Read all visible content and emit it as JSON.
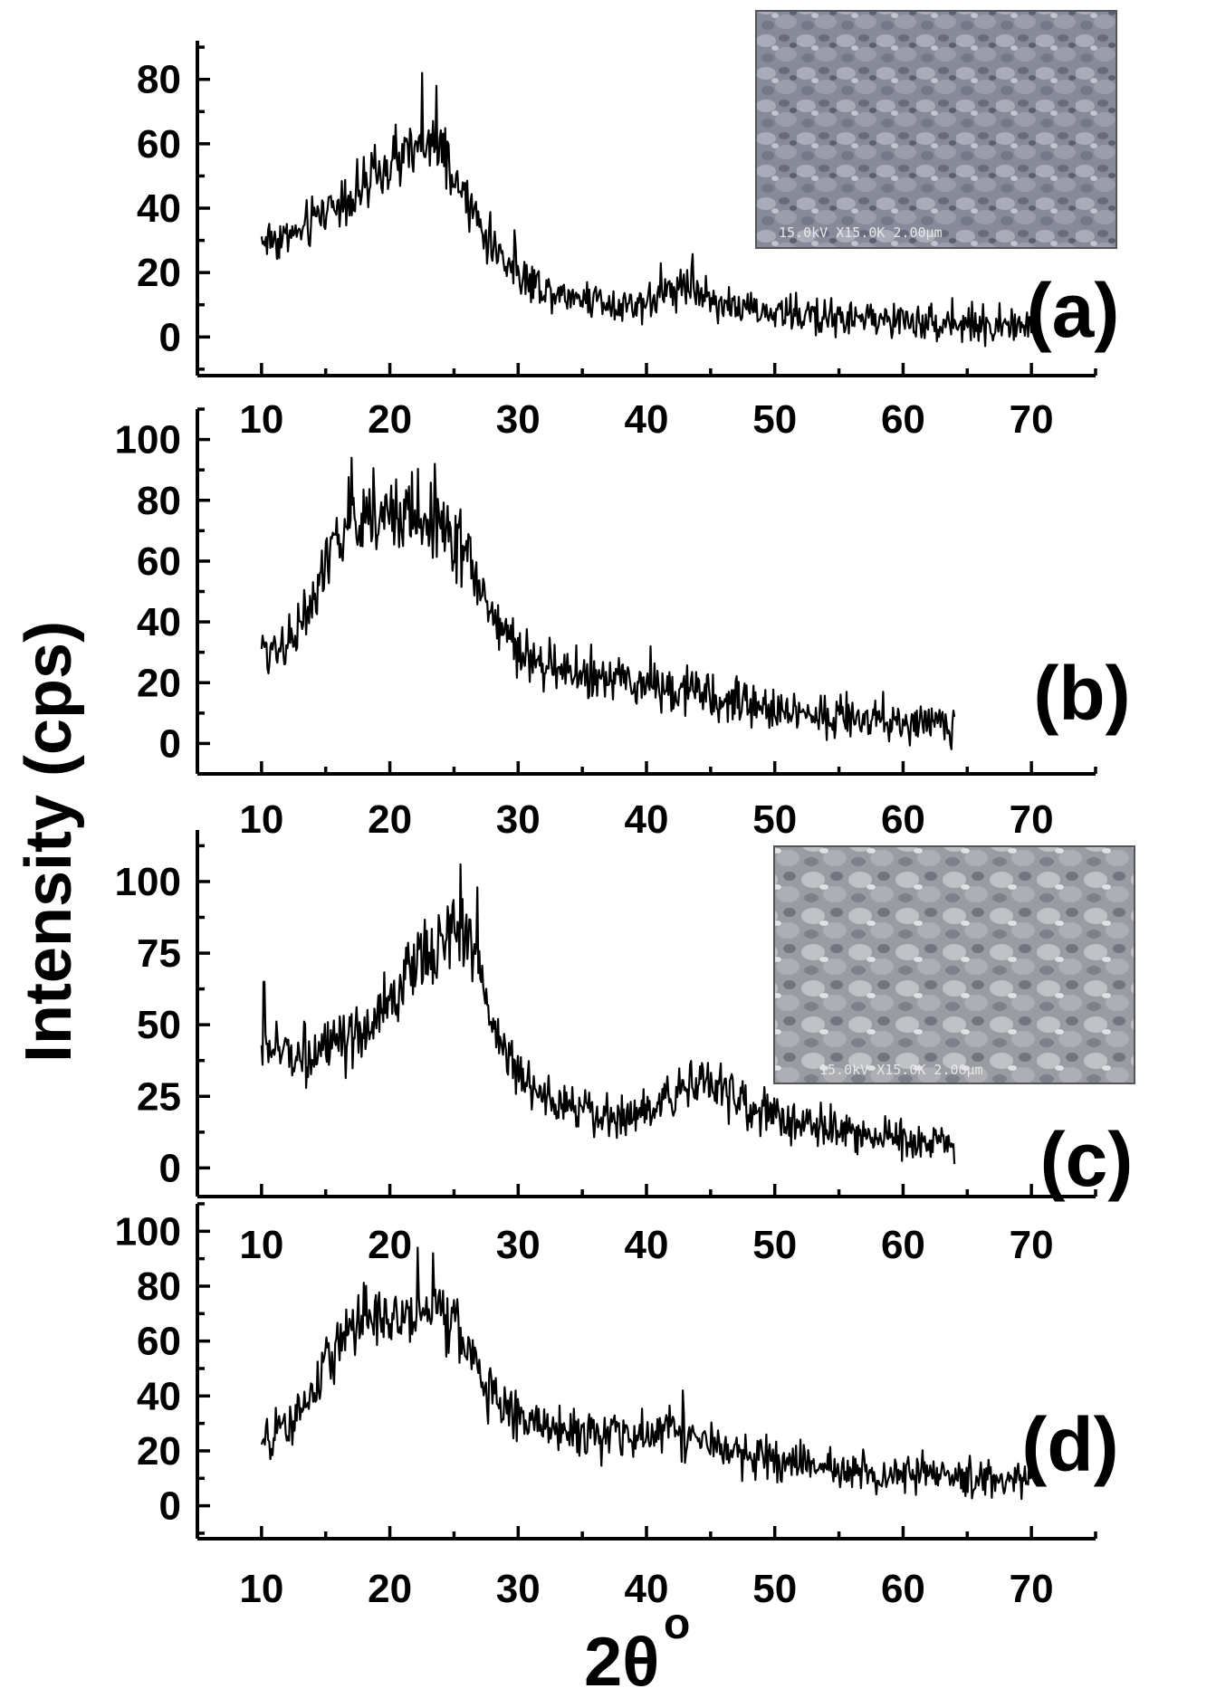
{
  "figure": {
    "y_axis_title": "Intensity (cps)",
    "x_axis_title": "2θ",
    "x_axis_title_sup": "o"
  },
  "chart_data": [
    {
      "type": "line",
      "panel_label": "(a)",
      "xlim": [
        5,
        75
      ],
      "ylim": [
        -12,
        92
      ],
      "x_ticks": [
        10,
        20,
        30,
        40,
        50,
        60,
        70
      ],
      "y_ticks": [
        0,
        20,
        40,
        60,
        80
      ],
      "x_tick_labels": [
        "10",
        "20",
        "30",
        "40",
        "50",
        "60",
        "70"
      ],
      "y_tick_labels": [
        "0",
        "20",
        "40",
        "60",
        "80"
      ],
      "has_inset_image": true,
      "inset_caption": "15.0kV X15.0K 2.00μm",
      "x_range": [
        10,
        70
      ],
      "envelope": [
        [
          10,
          30
        ],
        [
          13,
          32
        ],
        [
          15,
          40
        ],
        [
          18,
          46
        ],
        [
          20,
          53
        ],
        [
          22,
          58
        ],
        [
          23,
          60
        ],
        [
          24,
          56
        ],
        [
          26,
          42
        ],
        [
          28,
          28
        ],
        [
          30,
          20
        ],
        [
          32,
          15
        ],
        [
          34,
          13
        ],
        [
          36,
          12
        ],
        [
          38,
          10
        ],
        [
          40,
          11
        ],
        [
          42,
          15
        ],
        [
          43,
          17
        ],
        [
          45,
          12
        ],
        [
          48,
          8
        ],
        [
          55,
          6
        ],
        [
          60,
          5
        ],
        [
          70,
          3
        ]
      ],
      "noise": 5,
      "spikes": [
        [
          22.5,
          82
        ],
        [
          23.6,
          78
        ]
      ]
    },
    {
      "type": "line",
      "panel_label": "(b)",
      "xlim": [
        5,
        75
      ],
      "ylim": [
        -10,
        110
      ],
      "x_ticks": [
        10,
        20,
        30,
        40,
        50,
        60,
        70
      ],
      "y_ticks": [
        0,
        20,
        40,
        60,
        80,
        100
      ],
      "x_tick_labels": [
        "10",
        "20",
        "30",
        "40",
        "50",
        "60",
        "70"
      ],
      "y_tick_labels": [
        "0",
        "20",
        "40",
        "60",
        "80",
        "100"
      ],
      "has_inset_image": false,
      "x_range": [
        10,
        64
      ],
      "envelope": [
        [
          10,
          30
        ],
        [
          12,
          34
        ],
        [
          14,
          45
        ],
        [
          16,
          68
        ],
        [
          18,
          76
        ],
        [
          20,
          75
        ],
        [
          22,
          75
        ],
        [
          24,
          74
        ],
        [
          26,
          62
        ],
        [
          28,
          42
        ],
        [
          30,
          30
        ],
        [
          32,
          26
        ],
        [
          35,
          22
        ],
        [
          38,
          20
        ],
        [
          40,
          19
        ],
        [
          43,
          18
        ],
        [
          46,
          14
        ],
        [
          50,
          11
        ],
        [
          55,
          9
        ],
        [
          60,
          7
        ],
        [
          64,
          6
        ]
      ],
      "noise": 6,
      "spikes": [
        [
          17,
          94
        ],
        [
          23.5,
          92
        ],
        [
          40.3,
          32
        ]
      ]
    },
    {
      "type": "line",
      "panel_label": "(c)",
      "xlim": [
        5,
        75
      ],
      "ylim": [
        -10,
        118
      ],
      "x_ticks": [
        10,
        20,
        30,
        40,
        50,
        60,
        70
      ],
      "y_ticks": [
        0,
        25,
        50,
        75,
        100
      ],
      "x_tick_labels": [
        "10",
        "20",
        "30",
        "40",
        "50",
        "60",
        "70"
      ],
      "y_tick_labels": [
        "0",
        "25",
        "50",
        "75",
        "100"
      ],
      "has_inset_image": true,
      "inset_caption": "15.0kV X15.0K 2.00μm",
      "x_range": [
        10,
        64
      ],
      "envelope": [
        [
          10,
          42
        ],
        [
          13,
          40
        ],
        [
          16,
          42
        ],
        [
          18,
          46
        ],
        [
          20,
          58
        ],
        [
          22,
          70
        ],
        [
          24,
          80
        ],
        [
          26,
          82
        ],
        [
          27,
          72
        ],
        [
          28,
          50
        ],
        [
          30,
          32
        ],
        [
          32,
          24
        ],
        [
          35,
          20
        ],
        [
          38,
          18
        ],
        [
          40,
          20
        ],
        [
          42,
          26
        ],
        [
          44,
          32
        ],
        [
          46,
          28
        ],
        [
          48,
          20
        ],
        [
          52,
          15
        ],
        [
          56,
          13
        ],
        [
          60,
          10
        ],
        [
          64,
          8
        ]
      ],
      "noise": 6,
      "spikes": [
        [
          25.5,
          106
        ],
        [
          26.8,
          98
        ],
        [
          10.2,
          65
        ]
      ]
    },
    {
      "type": "line",
      "panel_label": "(d)",
      "xlim": [
        5,
        75
      ],
      "ylim": [
        -12,
        110
      ],
      "x_ticks": [
        10,
        20,
        30,
        40,
        50,
        60,
        70
      ],
      "y_ticks": [
        0,
        20,
        40,
        60,
        80,
        100
      ],
      "x_tick_labels": [
        "10",
        "20",
        "30",
        "40",
        "50",
        "60",
        "70"
      ],
      "y_tick_labels": [
        "0",
        "20",
        "40",
        "60",
        "80",
        "100"
      ],
      "has_inset_image": false,
      "x_range": [
        10,
        70
      ],
      "envelope": [
        [
          10,
          22
        ],
        [
          12,
          28
        ],
        [
          14,
          40
        ],
        [
          16,
          62
        ],
        [
          18,
          68
        ],
        [
          20,
          66
        ],
        [
          22,
          70
        ],
        [
          24,
          72
        ],
        [
          26,
          58
        ],
        [
          28,
          40
        ],
        [
          30,
          32
        ],
        [
          33,
          28
        ],
        [
          36,
          26
        ],
        [
          40,
          24
        ],
        [
          42,
          30
        ],
        [
          43,
          26
        ],
        [
          46,
          20
        ],
        [
          50,
          16
        ],
        [
          55,
          13
        ],
        [
          60,
          11
        ],
        [
          65,
          10
        ],
        [
          70,
          10
        ]
      ],
      "noise": 6,
      "spikes": [
        [
          22.2,
          94
        ],
        [
          23.4,
          92
        ],
        [
          42.8,
          42
        ]
      ]
    }
  ]
}
